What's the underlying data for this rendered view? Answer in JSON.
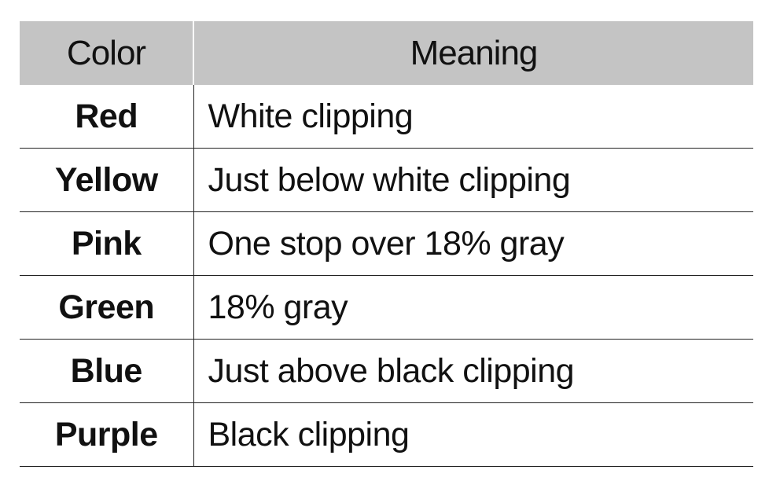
{
  "table": {
    "headers": {
      "color": "Color",
      "meaning": "Meaning"
    },
    "rows": [
      {
        "color": "Red",
        "meaning": "White clipping"
      },
      {
        "color": "Yellow",
        "meaning": "Just below white clipping"
      },
      {
        "color": "Pink",
        "meaning": "One stop over 18% gray"
      },
      {
        "color": "Green",
        "meaning": "18% gray"
      },
      {
        "color": "Blue",
        "meaning": "Just above black clipping"
      },
      {
        "color": "Purple",
        "meaning": "Black clipping"
      }
    ],
    "colors": {
      "header_background": "#c4c4c4",
      "rule": "#222222",
      "text": "#111111"
    }
  }
}
